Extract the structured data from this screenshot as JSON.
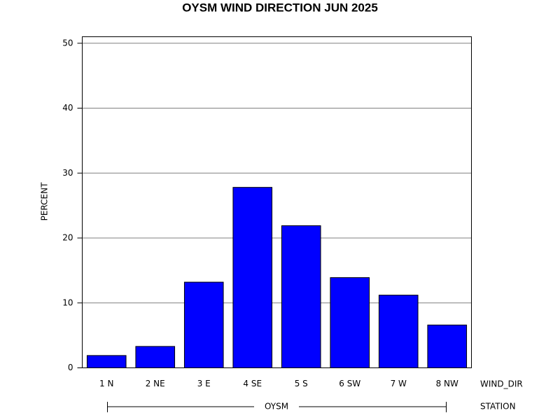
{
  "chart_data": {
    "type": "bar",
    "title": "OYSM WIND DIRECTION JUN 2025",
    "y_label": "PERCENT",
    "x_label": "WIND_DIR",
    "group_label": "STATION",
    "group": "OYSM",
    "categories": [
      "1 N",
      "2 NE",
      "3 E",
      "4 SE",
      "5 S",
      "6 SW",
      "7 W",
      "8 NW"
    ],
    "values": [
      1.9,
      3.3,
      13.2,
      27.8,
      21.9,
      13.9,
      11.2,
      6.6
    ],
    "color": "#0000ff",
    "ylim": [
      0,
      51
    ],
    "yticks": [
      0,
      10,
      20,
      30,
      40,
      50
    ],
    "grid": true
  }
}
